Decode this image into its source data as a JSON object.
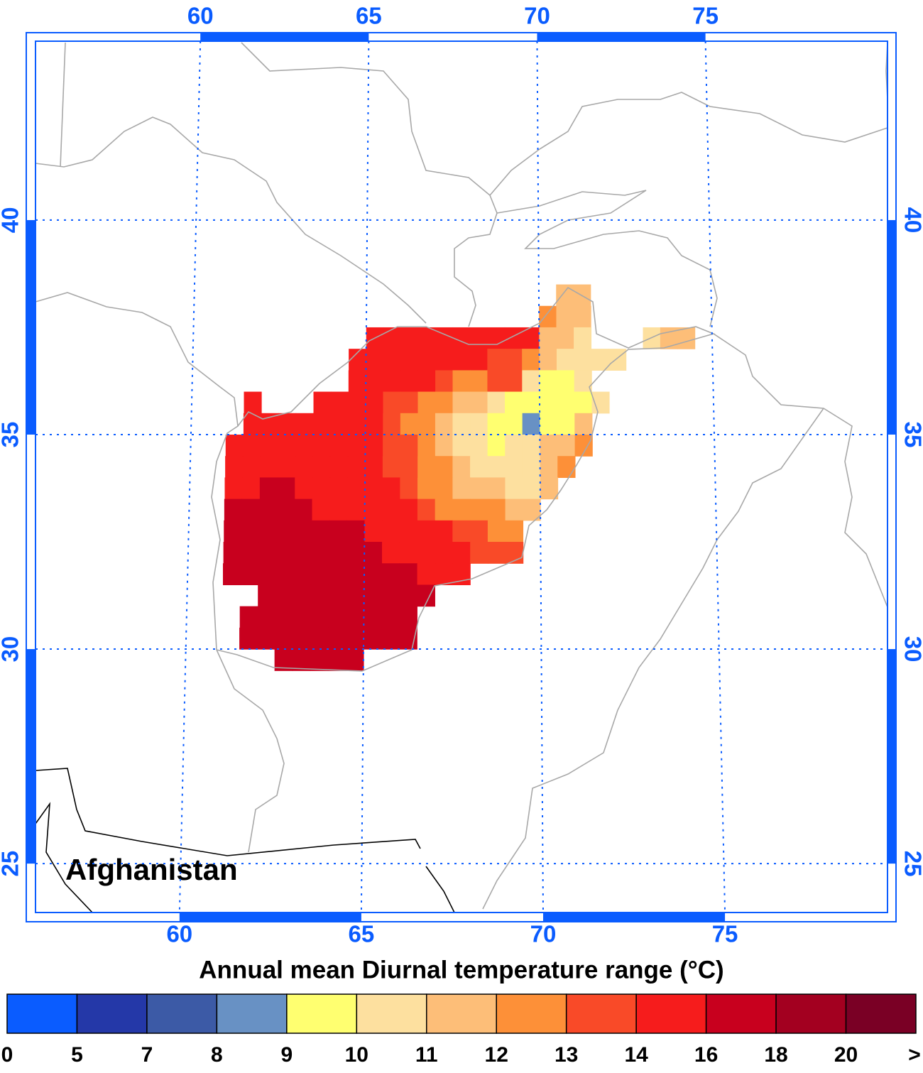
{
  "chart_data": {
    "type": "heatmap",
    "label": "Afghanistan",
    "title": "Annual mean Diurnal temperature range (°C)",
    "x": [
      61.25,
      61.75,
      62.25,
      62.75,
      63.25,
      63.75,
      64.25,
      64.75,
      65.25,
      65.75,
      66.25,
      66.75,
      67.25,
      67.75,
      68.25,
      68.75,
      69.25,
      69.75,
      70.25,
      70.75,
      71.25,
      71.75,
      72.25,
      72.75,
      73.25,
      73.75,
      74.25
    ],
    "y": [
      38.25,
      37.75,
      37.25,
      36.75,
      36.25,
      35.75,
      35.25,
      34.75,
      34.25,
      33.75,
      33.25,
      32.75,
      32.25,
      31.75,
      31.25,
      30.75,
      30.25,
      29.75
    ],
    "values": [
      [
        null,
        null,
        null,
        null,
        null,
        null,
        null,
        null,
        null,
        null,
        null,
        null,
        null,
        null,
        null,
        null,
        null,
        null,
        null,
        11.5,
        11.5,
        null,
        null,
        null,
        null,
        null,
        null
      ],
      [
        null,
        null,
        null,
        null,
        null,
        null,
        null,
        null,
        null,
        null,
        null,
        null,
        null,
        null,
        null,
        null,
        null,
        null,
        12.5,
        11.5,
        11.5,
        null,
        null,
        null,
        null,
        null,
        null
      ],
      [
        null,
        null,
        null,
        null,
        null,
        null,
        null,
        null,
        15,
        15,
        15,
        15,
        15,
        15,
        15,
        15,
        15,
        15,
        11.5,
        11.5,
        10.5,
        null,
        null,
        null,
        10.5,
        11.5,
        11.5
      ],
      [
        null,
        null,
        null,
        null,
        null,
        null,
        null,
        15,
        15,
        15,
        15,
        15,
        15,
        15,
        15,
        13.5,
        13.5,
        12.5,
        11.5,
        10.5,
        10.5,
        10.5,
        10.5,
        null,
        null,
        null,
        null
      ],
      [
        null,
        null,
        null,
        null,
        null,
        null,
        null,
        15,
        15,
        15,
        15,
        15,
        13.5,
        12.5,
        12.5,
        13.5,
        13.5,
        10.5,
        9.5,
        9.5,
        10.5,
        null,
        null,
        null,
        null,
        null,
        null
      ],
      [
        null,
        15,
        null,
        null,
        null,
        15,
        15,
        15,
        15,
        13.5,
        13.5,
        12.5,
        12.5,
        11.5,
        11.5,
        10.5,
        9.5,
        9.5,
        9.5,
        9.5,
        9.5,
        10.5,
        null,
        null,
        null,
        null,
        null
      ],
      [
        null,
        15,
        15,
        15,
        15,
        15,
        15,
        15,
        15,
        13.5,
        12.5,
        12.5,
        11.5,
        10.5,
        10.5,
        9.5,
        9.5,
        8.5,
        9.5,
        9.5,
        11.5,
        null,
        null,
        null,
        null,
        null,
        null
      ],
      [
        15,
        15,
        15,
        15,
        15,
        15,
        15,
        15,
        15,
        13.5,
        13.5,
        12.5,
        11.5,
        10.5,
        10.5,
        9.5,
        10.5,
        10.5,
        11.5,
        11.5,
        12.5,
        null,
        null,
        null,
        null,
        null,
        null
      ],
      [
        15,
        15,
        15,
        15,
        15,
        15,
        15,
        15,
        15,
        13.5,
        13.5,
        12.5,
        12.5,
        11.5,
        10.5,
        10.5,
        10.5,
        10.5,
        11.5,
        12.5,
        null,
        null,
        null,
        null,
        null,
        null,
        null
      ],
      [
        15,
        15,
        17,
        17,
        15,
        15,
        15,
        15,
        15,
        15,
        13.5,
        12.5,
        12.5,
        11.5,
        11.5,
        11.5,
        10.5,
        10.5,
        11.5,
        null,
        null,
        null,
        null,
        null,
        null,
        null,
        null
      ],
      [
        17,
        17,
        17,
        17,
        17,
        15,
        15,
        15,
        15,
        15,
        15,
        13.5,
        12.5,
        12.5,
        12.5,
        12.5,
        11.5,
        11.5,
        null,
        null,
        null,
        null,
        null,
        null,
        null,
        null,
        null
      ],
      [
        17,
        17,
        17,
        17,
        17,
        17,
        17,
        17,
        15,
        15,
        15,
        15,
        15,
        13.5,
        13.5,
        12.5,
        12.5,
        null,
        null,
        null,
        null,
        null,
        null,
        null,
        null,
        null,
        null
      ],
      [
        17,
        17,
        17,
        17,
        17,
        17,
        17,
        17,
        17,
        15,
        15,
        15,
        15,
        15,
        13.5,
        13.5,
        13.5,
        null,
        null,
        null,
        null,
        null,
        null,
        null,
        null,
        null,
        null
      ],
      [
        17,
        17,
        17,
        17,
        17,
        17,
        17,
        17,
        17,
        17,
        17,
        15,
        15,
        15,
        null,
        null,
        null,
        null,
        null,
        null,
        null,
        null,
        null,
        null,
        null,
        null,
        null
      ],
      [
        null,
        null,
        17,
        17,
        17,
        17,
        17,
        17,
        17,
        17,
        17,
        17,
        null,
        null,
        null,
        null,
        null,
        null,
        null,
        null,
        null,
        null,
        null,
        null,
        null,
        null,
        null
      ],
      [
        null,
        17,
        17,
        17,
        17,
        17,
        17,
        17,
        17,
        17,
        17,
        null,
        null,
        null,
        null,
        null,
        null,
        null,
        null,
        null,
        null,
        null,
        null,
        null,
        null,
        null,
        null
      ],
      [
        null,
        17,
        17,
        17,
        17,
        17,
        17,
        17,
        17,
        17,
        17,
        null,
        null,
        null,
        null,
        null,
        null,
        null,
        null,
        null,
        null,
        null,
        null,
        null,
        null,
        null,
        null
      ],
      [
        null,
        null,
        null,
        17,
        17,
        17,
        17,
        17,
        null,
        null,
        null,
        null,
        null,
        null,
        null,
        null,
        null,
        null,
        null,
        null,
        null,
        null,
        null,
        null,
        null,
        null,
        null
      ]
    ],
    "xlim": [
      56.04,
      79.47
    ],
    "ylim": [
      23.86,
      44.17
    ],
    "xticks": [
      60,
      65,
      70,
      75
    ],
    "yticks": [
      40,
      35,
      30,
      25
    ],
    "grid": true,
    "axis_color": "#0a5cff",
    "colorbar": {
      "bounds": [
        0,
        5,
        7,
        8,
        9,
        10,
        11,
        12,
        13,
        14,
        16,
        18,
        20
      ],
      "over_label": ">",
      "colors": [
        "#0a5cff",
        "#2438a8",
        "#3c5aa6",
        "#6891c4",
        "#ffff70",
        "#fde09f",
        "#fdbe78",
        "#fd9038",
        "#f94a28",
        "#f61c1c",
        "#c8001e",
        "#a30020",
        "#7a0025"
      ]
    }
  }
}
